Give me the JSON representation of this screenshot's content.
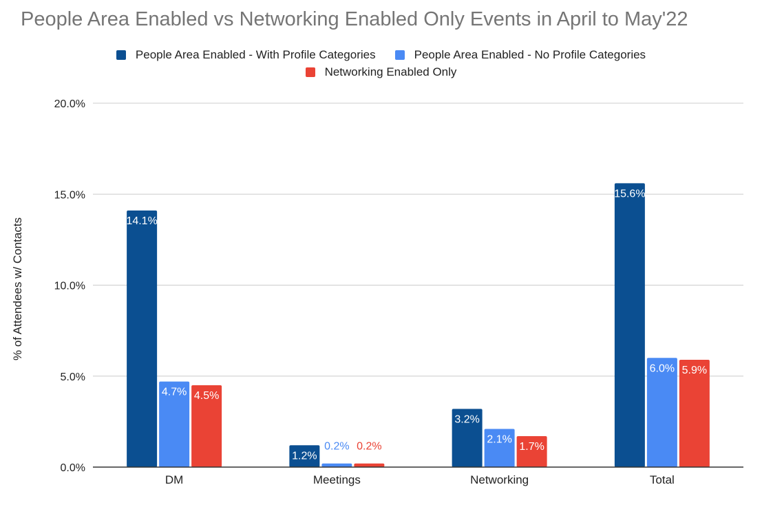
{
  "chart_data": {
    "type": "bar",
    "title": "People Area Enabled vs Networking Enabled Only Events in April to May'22",
    "xlabel": "",
    "ylabel": "% of Attendees w/ Contacts",
    "ylim": [
      0,
      20
    ],
    "yticks": [
      "0.0%",
      "5.0%",
      "10.0%",
      "15.0%",
      "20.0%"
    ],
    "ytick_values": [
      0,
      5,
      10,
      15,
      20
    ],
    "categories": [
      "DM",
      "Meetings",
      "Networking",
      "Total"
    ],
    "legend_position": "top",
    "grid": true,
    "series": [
      {
        "name": "People Area Enabled - With Profile Categories",
        "color": "#0b4f91",
        "values": [
          14.1,
          1.2,
          3.2,
          15.6
        ],
        "labels": [
          "14.1%",
          "1.2%",
          "3.2%",
          "15.6%"
        ]
      },
      {
        "name": "People Area Enabled - No Profile Categories",
        "color": "#4a8af4",
        "values": [
          4.7,
          0.2,
          2.1,
          6.0
        ],
        "labels": [
          "4.7%",
          "0.2%",
          "2.1%",
          "6.0%"
        ]
      },
      {
        "name": "Networking Enabled Only",
        "color": "#ea4335",
        "values": [
          4.5,
          0.2,
          1.7,
          5.9
        ],
        "labels": [
          "4.5%",
          "0.2%",
          "1.7%",
          "5.9%"
        ]
      }
    ]
  }
}
